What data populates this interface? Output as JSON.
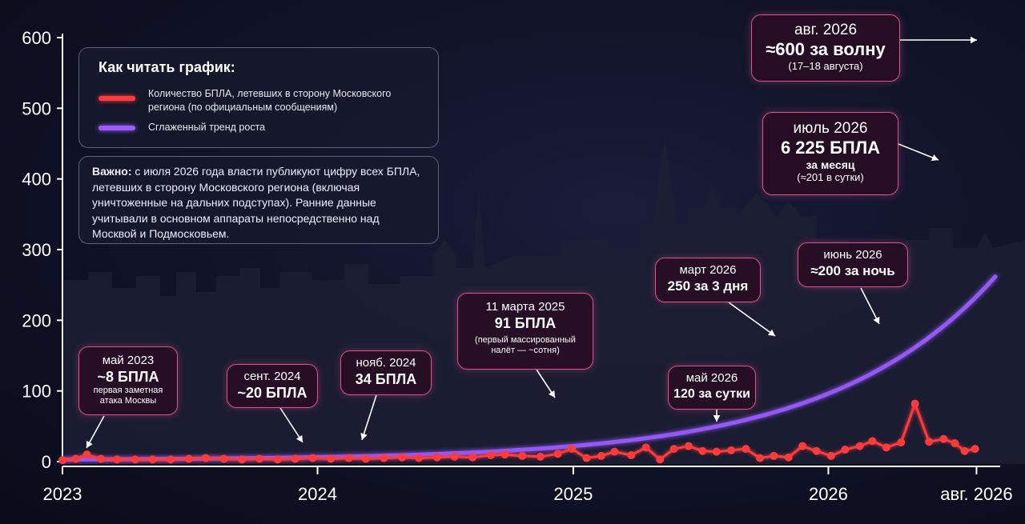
{
  "chart_data": {
    "type": "line",
    "ylim": [
      0,
      600
    ],
    "yticks": [
      0,
      100,
      200,
      300,
      400,
      500,
      600
    ],
    "xticks": [
      {
        "x": "2023-01-01",
        "label": "2023"
      },
      {
        "x": "2024-01-01",
        "label": "2024"
      },
      {
        "x": "2025-01-01",
        "label": "2025"
      },
      {
        "x": "2026-01-01",
        "label": "2026"
      },
      {
        "x": "2026-08-01",
        "label": "авг. 2026"
      }
    ],
    "series": [
      {
        "name": "Количество БПЛА, летевших в сторону Московского региона (по официальным сообщениям)",
        "color": "#ff3b3b",
        "points": [
          [
            "2023-01-01",
            2
          ],
          [
            "2023-01-20",
            4
          ],
          [
            "2023-02-05",
            10
          ],
          [
            "2023-02-25",
            4
          ],
          [
            "2023-03-20",
            3
          ],
          [
            "2023-04-15",
            3
          ],
          [
            "2023-05-10",
            3
          ],
          [
            "2023-06-05",
            3
          ],
          [
            "2023-07-01",
            4
          ],
          [
            "2023-07-25",
            5
          ],
          [
            "2023-08-20",
            4
          ],
          [
            "2023-09-15",
            3
          ],
          [
            "2023-10-10",
            4
          ],
          [
            "2023-11-05",
            3
          ],
          [
            "2023-11-30",
            4
          ],
          [
            "2023-12-25",
            5
          ],
          [
            "2024-01-20",
            4
          ],
          [
            "2024-02-15",
            5
          ],
          [
            "2024-03-10",
            4
          ],
          [
            "2024-04-05",
            5
          ],
          [
            "2024-05-01",
            6
          ],
          [
            "2024-05-25",
            5
          ],
          [
            "2024-06-20",
            6
          ],
          [
            "2024-07-15",
            7
          ],
          [
            "2024-08-10",
            6
          ],
          [
            "2024-09-05",
            9
          ],
          [
            "2024-09-25",
            10
          ],
          [
            "2024-10-20",
            8
          ],
          [
            "2024-11-15",
            7
          ],
          [
            "2024-12-10",
            11
          ],
          [
            "2024-12-30",
            18
          ],
          [
            "2025-01-20",
            5
          ],
          [
            "2025-02-10",
            8
          ],
          [
            "2025-03-01",
            14
          ],
          [
            "2025-03-25",
            9
          ],
          [
            "2025-04-15",
            20
          ],
          [
            "2025-05-05",
            3
          ],
          [
            "2025-05-25",
            18
          ],
          [
            "2025-06-15",
            22
          ],
          [
            "2025-07-05",
            15
          ],
          [
            "2025-07-25",
            14
          ],
          [
            "2025-08-15",
            16
          ],
          [
            "2025-09-05",
            18
          ],
          [
            "2025-09-25",
            5
          ],
          [
            "2025-10-15",
            8
          ],
          [
            "2025-11-05",
            6
          ],
          [
            "2025-11-25",
            22
          ],
          [
            "2025-12-15",
            15
          ],
          [
            "2026-01-05",
            8
          ],
          [
            "2026-01-25",
            17
          ],
          [
            "2026-02-15",
            22
          ],
          [
            "2026-03-05",
            29
          ],
          [
            "2026-03-25",
            20
          ],
          [
            "2026-04-15",
            27
          ],
          [
            "2026-05-05",
            82
          ],
          [
            "2026-05-25",
            28
          ],
          [
            "2026-06-15",
            32
          ],
          [
            "2026-07-01",
            26
          ],
          [
            "2026-07-15",
            15
          ],
          [
            "2026-07-30",
            18
          ]
        ]
      },
      {
        "name": "Сглаженный тренд роста",
        "color": "#9b5cff",
        "points": []
      }
    ],
    "title": "",
    "xlabel": "",
    "ylabel": ""
  },
  "legend": {
    "title": "Как читать график:",
    "item1": "Количество БПЛА, летевших в сторону Московского региона (по официальным сообщениям)",
    "item2": "Сглаженный тренд роста"
  },
  "note": {
    "bold": "Важно:",
    "text": " с июля 2026 года власти публикуют цифру всех БПЛА, летевших в сторону Московского региона (включая уничтоженные на дальних подступах). Ранние данные учитывали в основном аппараты непосредственно над Москвой и Подмосковьем."
  },
  "annotations": {
    "may2023": {
      "l1": "май 2023",
      "l2": "~8 БПЛА",
      "l3": "первая заметная атака Москвы"
    },
    "sep2024": {
      "l1": "сент. 2024",
      "l2": "~20 БПЛА"
    },
    "nov2024": {
      "l1": "нояб. 2024",
      "l2": "34 БПЛА"
    },
    "mar2025": {
      "l1": "11 марта 2025",
      "l2": "91 БПЛА",
      "l3": "(первый массированный налёт — ~сотня)"
    },
    "may2026": {
      "l1": "май 2026",
      "l2": "120 за сутки"
    },
    "mar2026": {
      "l1": "март 2026",
      "l2": "250 за 3 дня"
    },
    "jun2026": {
      "l1": "июнь 2026",
      "l2": "≈200 за ночь"
    },
    "jul2026": {
      "l1": "июль 2026",
      "l2": "6 225 БПЛА",
      "l3a": "за месяц",
      "l3": "(≈201 в сутки)"
    },
    "aug2026": {
      "l1": "авг. 2026",
      "l2": "≈600 за волну",
      "l3": "(17–18 августа)"
    }
  }
}
